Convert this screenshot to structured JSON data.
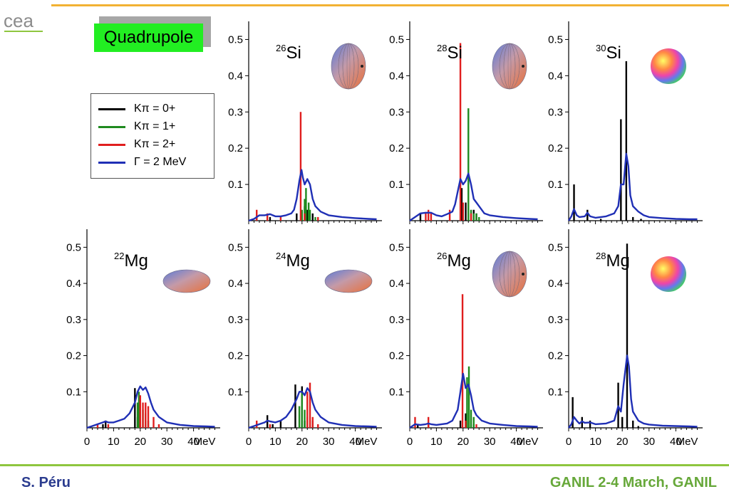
{
  "header": {
    "logo_text": "cea"
  },
  "footer": {
    "author": "S. Péru",
    "conference": "GANIL 2-4 March, GANIL"
  },
  "title_box": "Quadrupole",
  "legend": [
    {
      "label": "Kπ = 0+",
      "color": "#000000"
    },
    {
      "label": "Kπ = 1+",
      "color": "#1f8a1f"
    },
    {
      "label": "Kπ = 2+",
      "color": "#e01e1e"
    },
    {
      "label": "Γ = 2 MeV",
      "color": "#1f2fb5"
    }
  ],
  "colors": {
    "k0": "#000000",
    "k1": "#1f8a1f",
    "k2": "#e01e1e",
    "smooth": "#1f2fb5"
  },
  "chart_data": [
    {
      "type": "bar",
      "nucleus": "Si",
      "mass": "26",
      "shape": "oblate",
      "xlim": [
        0,
        50
      ],
      "ylim": [
        0,
        0.55
      ],
      "yticks": [
        "0.1",
        "0.2",
        "0.3",
        "0.4",
        "0.5"
      ],
      "xticks": [],
      "k0": [
        [
          3,
          0.01
        ],
        [
          8,
          0.01
        ],
        [
          18,
          0.02
        ],
        [
          21,
          0.04
        ],
        [
          22,
          0.03
        ],
        [
          24,
          0.02
        ]
      ],
      "k1": [
        [
          20,
          0.03
        ],
        [
          21,
          0.06
        ],
        [
          21.5,
          0.09
        ],
        [
          22.5,
          0.05
        ],
        [
          23,
          0.03
        ],
        [
          25,
          0.01
        ]
      ],
      "k2": [
        [
          3,
          0.03
        ],
        [
          7,
          0.02
        ],
        [
          12,
          0.01
        ],
        [
          19.5,
          0.3
        ],
        [
          21,
          0.02
        ],
        [
          26,
          0.01
        ]
      ],
      "smooth": [
        [
          0,
          0
        ],
        [
          2,
          0.005
        ],
        [
          4,
          0.015
        ],
        [
          6,
          0.015
        ],
        [
          8,
          0.018
        ],
        [
          10,
          0.012
        ],
        [
          12,
          0.012
        ],
        [
          14,
          0.015
        ],
        [
          16,
          0.02
        ],
        [
          17,
          0.03
        ],
        [
          18,
          0.06
        ],
        [
          19,
          0.11
        ],
        [
          19.8,
          0.14
        ],
        [
          20.3,
          0.12
        ],
        [
          21,
          0.1
        ],
        [
          22,
          0.115
        ],
        [
          23,
          0.1
        ],
        [
          24,
          0.06
        ],
        [
          25,
          0.04
        ],
        [
          27,
          0.025
        ],
        [
          30,
          0.015
        ],
        [
          35,
          0.01
        ],
        [
          40,
          0.007
        ],
        [
          45,
          0.005
        ],
        [
          48,
          0.004
        ]
      ]
    },
    {
      "type": "bar",
      "nucleus": "Si",
      "mass": "28",
      "shape": "oblate",
      "xlim": [
        0,
        50
      ],
      "ylim": [
        0,
        0.55
      ],
      "yticks": [
        "0.1",
        "0.2",
        "0.3",
        "0.4",
        "0.5"
      ],
      "xticks": [],
      "k0": [
        [
          4,
          0.02
        ],
        [
          19.5,
          0.09
        ],
        [
          21,
          0.05
        ],
        [
          24,
          0.03
        ],
        [
          25,
          0.02
        ]
      ],
      "k1": [
        [
          22,
          0.31
        ],
        [
          23,
          0.03
        ],
        [
          24,
          0.02
        ],
        [
          25,
          0.02
        ],
        [
          26,
          0.01
        ]
      ],
      "k2": [
        [
          6,
          0.02
        ],
        [
          7,
          0.03
        ],
        [
          8,
          0.02
        ],
        [
          15,
          0.03
        ],
        [
          19,
          0.49
        ],
        [
          20,
          0.05
        ],
        [
          23,
          0.02
        ]
      ],
      "smooth": [
        [
          0,
          0
        ],
        [
          2,
          0.01
        ],
        [
          4,
          0.02
        ],
        [
          6,
          0.022
        ],
        [
          8,
          0.022
        ],
        [
          10,
          0.015
        ],
        [
          12,
          0.012
        ],
        [
          14,
          0.018
        ],
        [
          16,
          0.025
        ],
        [
          17,
          0.045
        ],
        [
          18,
          0.08
        ],
        [
          19,
          0.115
        ],
        [
          20,
          0.1
        ],
        [
          21,
          0.11
        ],
        [
          22,
          0.13
        ],
        [
          23,
          0.1
        ],
        [
          24,
          0.06
        ],
        [
          25,
          0.05
        ],
        [
          26,
          0.04
        ],
        [
          28,
          0.02
        ],
        [
          30,
          0.015
        ],
        [
          35,
          0.01
        ],
        [
          40,
          0.007
        ],
        [
          45,
          0.005
        ],
        [
          48,
          0.004
        ]
      ]
    },
    {
      "type": "bar",
      "nucleus": "Si",
      "mass": "30",
      "shape": "sphere",
      "xlim": [
        0,
        50
      ],
      "ylim": [
        0,
        0.55
      ],
      "yticks": [
        "0.1",
        "0.2",
        "0.3",
        "0.4",
        "0.5"
      ],
      "xticks": [],
      "k0": [
        [
          2,
          0.1
        ],
        [
          7,
          0.03
        ],
        [
          12,
          0.005
        ],
        [
          19.5,
          0.28
        ],
        [
          21.5,
          0.44
        ],
        [
          24,
          0.01
        ],
        [
          27,
          0.005
        ]
      ],
      "k1": [],
      "k2": [],
      "smooth": [
        [
          0,
          0
        ],
        [
          1,
          0.012
        ],
        [
          2,
          0.032
        ],
        [
          3,
          0.015
        ],
        [
          4,
          0.01
        ],
        [
          6,
          0.012
        ],
        [
          7,
          0.022
        ],
        [
          8,
          0.012
        ],
        [
          10,
          0.008
        ],
        [
          14,
          0.012
        ],
        [
          17,
          0.02
        ],
        [
          18.5,
          0.04
        ],
        [
          19.5,
          0.1
        ],
        [
          20.5,
          0.1
        ],
        [
          21.5,
          0.185
        ],
        [
          22.3,
          0.15
        ],
        [
          23,
          0.07
        ],
        [
          24,
          0.04
        ],
        [
          26,
          0.025
        ],
        [
          28,
          0.015
        ],
        [
          30,
          0.01
        ],
        [
          35,
          0.007
        ],
        [
          40,
          0.005
        ],
        [
          45,
          0.004
        ],
        [
          48,
          0.004
        ]
      ]
    },
    {
      "type": "bar",
      "nucleus": "Mg",
      "mass": "22",
      "shape": "prolate",
      "xlim": [
        0,
        50
      ],
      "ylim": [
        0,
        0.55
      ],
      "yticks": [
        "0.1",
        "0.2",
        "0.3",
        "0.4",
        "0.5"
      ],
      "xticks": [
        "0",
        "10",
        "20",
        "30",
        "40"
      ],
      "x_unit": "MeV",
      "k0": [
        [
          6,
          0.01
        ],
        [
          7,
          0.02
        ],
        [
          18,
          0.11
        ],
        [
          19,
          0.03
        ],
        [
          22,
          0.02
        ]
      ],
      "k1": [
        [
          19,
          0.07
        ],
        [
          19.5,
          0.1
        ],
        [
          20,
          0.09
        ],
        [
          21,
          0.05
        ],
        [
          22,
          0.04
        ],
        [
          23,
          0.02
        ]
      ],
      "k2": [
        [
          4,
          0.01
        ],
        [
          8,
          0.01
        ],
        [
          20,
          0.09
        ],
        [
          21,
          0.07
        ],
        [
          22,
          0.07
        ],
        [
          23,
          0.06
        ],
        [
          25,
          0.03
        ],
        [
          27,
          0.01
        ]
      ],
      "smooth": [
        [
          0,
          0
        ],
        [
          2,
          0.005
        ],
        [
          4,
          0.01
        ],
        [
          6,
          0.015
        ],
        [
          7,
          0.018
        ],
        [
          8,
          0.015
        ],
        [
          10,
          0.015
        ],
        [
          12,
          0.02
        ],
        [
          14,
          0.025
        ],
        [
          16,
          0.04
        ],
        [
          18,
          0.07
        ],
        [
          19,
          0.1
        ],
        [
          20,
          0.115
        ],
        [
          21,
          0.105
        ],
        [
          22,
          0.112
        ],
        [
          23,
          0.095
        ],
        [
          24,
          0.07
        ],
        [
          25,
          0.05
        ],
        [
          27,
          0.03
        ],
        [
          30,
          0.015
        ],
        [
          35,
          0.008
        ],
        [
          40,
          0.005
        ],
        [
          45,
          0.004
        ],
        [
          48,
          0.003
        ]
      ]
    },
    {
      "type": "bar",
      "nucleus": "Mg",
      "mass": "24",
      "shape": "prolate",
      "xlim": [
        0,
        50
      ],
      "ylim": [
        0,
        0.55
      ],
      "yticks": [
        "0.1",
        "0.2",
        "0.3",
        "0.4",
        "0.5"
      ],
      "xticks": [
        "0",
        "10",
        "20",
        "30",
        "40"
      ],
      "x_unit": "MeV",
      "k0": [
        [
          7,
          0.035
        ],
        [
          9,
          0.01
        ],
        [
          12,
          0.02
        ],
        [
          17.5,
          0.12
        ],
        [
          20,
          0.115
        ],
        [
          21,
          0.02
        ],
        [
          24,
          0.02
        ]
      ],
      "k1": [
        [
          19,
          0.06
        ],
        [
          20,
          0.1
        ],
        [
          21,
          0.05
        ],
        [
          22,
          0.03
        ]
      ],
      "k2": [
        [
          3,
          0.02
        ],
        [
          8,
          0.01
        ],
        [
          22,
          0.1
        ],
        [
          23,
          0.125
        ],
        [
          24,
          0.03
        ],
        [
          26,
          0.01
        ]
      ],
      "smooth": [
        [
          0,
          0
        ],
        [
          2,
          0.005
        ],
        [
          4,
          0.01
        ],
        [
          6,
          0.015
        ],
        [
          7,
          0.02
        ],
        [
          8,
          0.018
        ],
        [
          10,
          0.015
        ],
        [
          12,
          0.02
        ],
        [
          14,
          0.03
        ],
        [
          16,
          0.05
        ],
        [
          18,
          0.08
        ],
        [
          19,
          0.1
        ],
        [
          20,
          0.1
        ],
        [
          21,
          0.09
        ],
        [
          22,
          0.11
        ],
        [
          23,
          0.1
        ],
        [
          24,
          0.07
        ],
        [
          25,
          0.05
        ],
        [
          27,
          0.03
        ],
        [
          30,
          0.015
        ],
        [
          35,
          0.008
        ],
        [
          40,
          0.005
        ],
        [
          45,
          0.004
        ],
        [
          48,
          0.003
        ]
      ]
    },
    {
      "type": "bar",
      "nucleus": "Mg",
      "mass": "26",
      "shape": "oblate",
      "xlim": [
        0,
        50
      ],
      "ylim": [
        0,
        0.55
      ],
      "yticks": [
        "0.1",
        "0.2",
        "0.3",
        "0.4",
        "0.5"
      ],
      "xticks": [
        "0",
        "10",
        "20",
        "30",
        "40"
      ],
      "x_unit": "MeV",
      "k0": [
        [
          3,
          0.01
        ],
        [
          7,
          0.01
        ],
        [
          19,
          0.02
        ],
        [
          21,
          0.04
        ],
        [
          24,
          0.01
        ]
      ],
      "k1": [
        [
          21.5,
          0.14
        ],
        [
          22.2,
          0.17
        ],
        [
          23,
          0.05
        ],
        [
          24,
          0.03
        ]
      ],
      "k2": [
        [
          2,
          0.03
        ],
        [
          7,
          0.03
        ],
        [
          19.8,
          0.37
        ],
        [
          21,
          0.02
        ],
        [
          25,
          0.01
        ]
      ],
      "smooth": [
        [
          0,
          0
        ],
        [
          1,
          0.005
        ],
        [
          2,
          0.01
        ],
        [
          4,
          0.008
        ],
        [
          6,
          0.01
        ],
        [
          7,
          0.012
        ],
        [
          8,
          0.01
        ],
        [
          10,
          0.008
        ],
        [
          14,
          0.012
        ],
        [
          16,
          0.02
        ],
        [
          18,
          0.05
        ],
        [
          19,
          0.1
        ],
        [
          20,
          0.15
        ],
        [
          21,
          0.11
        ],
        [
          22,
          0.12
        ],
        [
          23,
          0.09
        ],
        [
          24,
          0.05
        ],
        [
          25,
          0.035
        ],
        [
          27,
          0.02
        ],
        [
          30,
          0.012
        ],
        [
          35,
          0.008
        ],
        [
          40,
          0.005
        ],
        [
          45,
          0.004
        ],
        [
          48,
          0.003
        ]
      ]
    },
    {
      "type": "bar",
      "nucleus": "Mg",
      "mass": "28",
      "shape": "sphere",
      "xlim": [
        0,
        50
      ],
      "ylim": [
        0,
        0.55
      ],
      "yticks": [
        "0.1",
        "0.2",
        "0.3",
        "0.4",
        "0.5"
      ],
      "xticks": [
        "0",
        "10",
        "20",
        "30",
        "40"
      ],
      "x_unit": "MeV",
      "k0": [
        [
          1.5,
          0.085
        ],
        [
          5,
          0.03
        ],
        [
          8,
          0.02
        ],
        [
          18.5,
          0.125
        ],
        [
          20,
          0.03
        ],
        [
          21.8,
          0.51
        ],
        [
          24,
          0.02
        ],
        [
          26,
          0.005
        ]
      ],
      "k1": [],
      "k2": [],
      "smooth": [
        [
          0,
          0
        ],
        [
          1,
          0.01
        ],
        [
          2,
          0.03
        ],
        [
          3,
          0.02
        ],
        [
          4,
          0.012
        ],
        [
          5,
          0.018
        ],
        [
          6,
          0.014
        ],
        [
          8,
          0.015
        ],
        [
          10,
          0.01
        ],
        [
          14,
          0.012
        ],
        [
          17,
          0.02
        ],
        [
          18.5,
          0.06
        ],
        [
          19.5,
          0.045
        ],
        [
          20.5,
          0.12
        ],
        [
          21.8,
          0.2
        ],
        [
          22.5,
          0.17
        ],
        [
          23.3,
          0.08
        ],
        [
          24,
          0.045
        ],
        [
          26,
          0.02
        ],
        [
          28,
          0.012
        ],
        [
          30,
          0.009
        ],
        [
          35,
          0.006
        ],
        [
          40,
          0.005
        ],
        [
          45,
          0.004
        ],
        [
          48,
          0.003
        ]
      ]
    }
  ]
}
